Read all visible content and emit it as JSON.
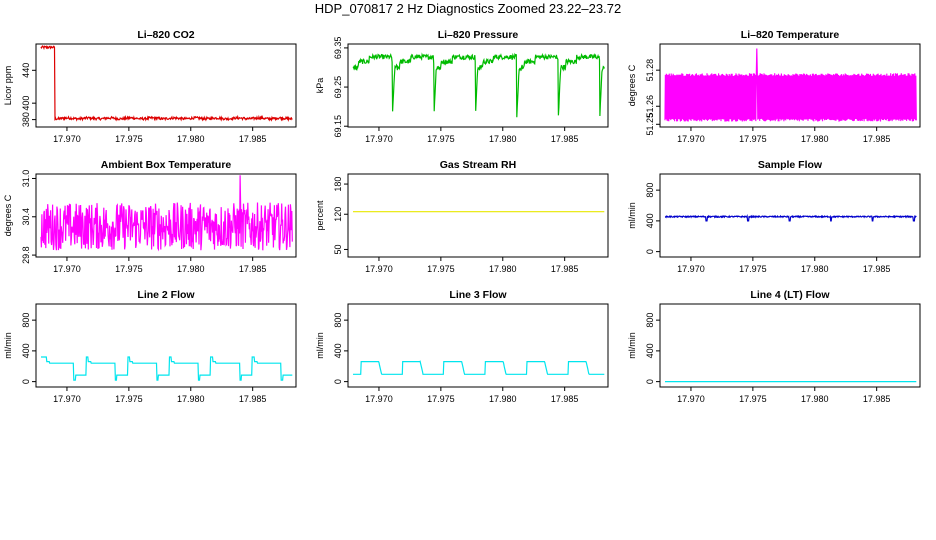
{
  "figure_title": "HDP_070817  2 Hz Diagnostics Zoomed 23.22–23.72",
  "chart_data": [
    {
      "id": "li820-co2",
      "type": "line",
      "title": "Li–820 CO2",
      "ylabel": "Licor ppm",
      "color": "#dd0000",
      "xlim": [
        17.9675,
        17.9885
      ],
      "ylim": [
        371,
        472
      ],
      "xticks": [
        17.97,
        17.975,
        17.98,
        17.985
      ],
      "xtick_labels": [
        "17.970",
        "17.975",
        "17.980",
        "17.985"
      ],
      "yticks": [
        380,
        400,
        440
      ],
      "ytick_labels": [
        "380",
        "400",
        "440"
      ],
      "signal": "co2"
    },
    {
      "id": "li820-pressure",
      "type": "line",
      "title": "Li–820 Pressure",
      "ylabel": "kPa",
      "color": "#00bb00",
      "xlim": [
        17.9675,
        17.9885
      ],
      "ylim": [
        69.148,
        69.36
      ],
      "xticks": [
        17.97,
        17.975,
        17.98,
        17.985
      ],
      "xtick_labels": [
        "17.970",
        "17.975",
        "17.980",
        "17.985"
      ],
      "yticks": [
        69.15,
        69.25,
        69.35
      ],
      "ytick_labels": [
        "69.15",
        "69.25",
        "69.35"
      ],
      "signal": "pressure"
    },
    {
      "id": "li820-temperature",
      "type": "line",
      "title": "Li–820 Temperature",
      "ylabel": "degrees C",
      "color": "#ff00ff",
      "xlim": [
        17.9675,
        17.9885
      ],
      "ylim": [
        51.2485,
        51.2945
      ],
      "xticks": [
        17.97,
        17.975,
        17.98,
        17.985
      ],
      "xtick_labels": [
        "17.970",
        "17.975",
        "17.980",
        "17.985"
      ],
      "yticks": [
        51.25,
        51.26,
        51.28
      ],
      "ytick_labels": [
        "51.25",
        "51.26",
        "51.28"
      ],
      "signal": "temp"
    },
    {
      "id": "ambient-box-temperature",
      "type": "line",
      "title": "Ambient Box Temperature",
      "ylabel": "degrees C",
      "color": "#ff00ff",
      "xlim": [
        17.9675,
        17.9885
      ],
      "ylim": [
        29.77,
        31.07
      ],
      "xticks": [
        17.97,
        17.975,
        17.98,
        17.985
      ],
      "xtick_labels": [
        "17.970",
        "17.975",
        "17.980",
        "17.985"
      ],
      "yticks": [
        29.8,
        30.4,
        31.0
      ],
      "ytick_labels": [
        "29.8",
        "30.4",
        "31.0"
      ],
      "signal": "ambient"
    },
    {
      "id": "gas-stream-rh",
      "type": "line",
      "title": "Gas Stream RH",
      "ylabel": "percent",
      "color": "#e8e800",
      "xlim": [
        17.9675,
        17.9885
      ],
      "ylim": [
        35,
        200
      ],
      "xticks": [
        17.97,
        17.975,
        17.98,
        17.985
      ],
      "xtick_labels": [
        "17.970",
        "17.975",
        "17.980",
        "17.985"
      ],
      "yticks": [
        50,
        120,
        180
      ],
      "ytick_labels": [
        "50",
        "120",
        "180"
      ],
      "signal": "const",
      "level": 125
    },
    {
      "id": "sample-flow",
      "type": "line",
      "title": "Sample Flow",
      "ylabel": "ml/min",
      "color": "#0000cc",
      "xlim": [
        17.9675,
        17.9885
      ],
      "ylim": [
        -70,
        1010
      ],
      "xticks": [
        17.97,
        17.975,
        17.98,
        17.985
      ],
      "xtick_labels": [
        "17.970",
        "17.975",
        "17.980",
        "17.985"
      ],
      "yticks": [
        0,
        400,
        800
      ],
      "ytick_labels": [
        "0",
        "400",
        "800"
      ],
      "signal": "sampleflow"
    },
    {
      "id": "line2-flow",
      "type": "line",
      "title": "Line 2 Flow",
      "ylabel": "ml/min",
      "color": "#00e5ee",
      "xlim": [
        17.9675,
        17.9885
      ],
      "ylim": [
        -70,
        1010
      ],
      "xticks": [
        17.97,
        17.975,
        17.98,
        17.985
      ],
      "xtick_labels": [
        "17.970",
        "17.975",
        "17.980",
        "17.985"
      ],
      "yticks": [
        0,
        400,
        800
      ],
      "ytick_labels": [
        "0",
        "400",
        "800"
      ],
      "signal": "line2"
    },
    {
      "id": "line3-flow",
      "type": "line",
      "title": "Line 3 Flow",
      "ylabel": "ml/min",
      "color": "#00e5ee",
      "xlim": [
        17.9675,
        17.9885
      ],
      "ylim": [
        -70,
        1010
      ],
      "xticks": [
        17.97,
        17.975,
        17.98,
        17.985
      ],
      "xtick_labels": [
        "17.970",
        "17.975",
        "17.980",
        "17.985"
      ],
      "yticks": [
        0,
        400,
        800
      ],
      "ytick_labels": [
        "0",
        "400",
        "800"
      ],
      "signal": "line3"
    },
    {
      "id": "line4-flow",
      "type": "line",
      "title": "Line 4 (LT) Flow",
      "ylabel": "ml/min",
      "color": "#00e5ee",
      "xlim": [
        17.9675,
        17.9885
      ],
      "ylim": [
        -70,
        1010
      ],
      "xticks": [
        17.97,
        17.975,
        17.98,
        17.985
      ],
      "xtick_labels": [
        "17.970",
        "17.975",
        "17.980",
        "17.985"
      ],
      "yticks": [
        0,
        400,
        800
      ],
      "ytick_labels": [
        "0",
        "400",
        "800"
      ],
      "signal": "const",
      "level": 0
    }
  ]
}
